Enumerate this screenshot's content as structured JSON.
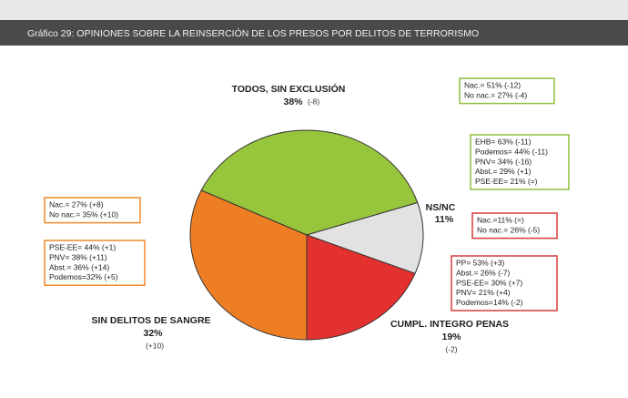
{
  "chart_data": {
    "type": "pie",
    "title": "Gráfico 29: OPINIONES SOBRE LA REINSERCIÓN DE LOS PRESOS POR DELITOS DE TERRORISMO",
    "categories": [
      "TODOS, SIN EXCLUSIÓN",
      "NS/NC",
      "CUMPL. INTEGRO PENAS",
      "SIN DELITOS DE SANGRE"
    ],
    "values": [
      38,
      11,
      19,
      32
    ],
    "value_labels": [
      "38%",
      "11%",
      "19%",
      "32%"
    ],
    "changes": [
      "(-8)",
      null,
      "(-2)",
      "(+10)"
    ],
    "colors": [
      "#97c53c",
      "#e2e2e2",
      "#e2312f",
      "#ee7e24"
    ],
    "annotations": [
      {
        "color": "#8fbf3e",
        "lines": [
          "Nac.= 51% (-12)",
          "No nac.= 27% (-4)"
        ]
      },
      {
        "color": "#8fbf3e",
        "lines": [
          "EHB= 63% (-11)",
          "Podemos= 44% (-11)",
          "PNV= 34% (-16)",
          "Abst.= 29% (+1)",
          "PSE-EE= 21% (=)"
        ]
      },
      {
        "color": "#d63a3a",
        "lines": [
          "Nac.=11% (=)",
          "No nac.= 26% (-5)"
        ]
      },
      {
        "color": "#d63a3a",
        "lines": [
          "PP= 53% (+3)",
          "Abst.= 26% (-7)",
          "PSE-EE= 30% (+7)",
          "PNV= 21% (+4)",
          "Podemos=14% (-2)"
        ]
      },
      {
        "color": "#ee8a2c",
        "lines": [
          "Nac.= 27% (+8)",
          "No nac.= 35% (+10)"
        ]
      },
      {
        "color": "#ee8a2c",
        "lines": [
          "PSE-EE= 44% (+1)",
          "PNV= 38% (+11)",
          "Abst.= 36% (+14)",
          "Podemos=32% (+5)"
        ]
      }
    ]
  }
}
